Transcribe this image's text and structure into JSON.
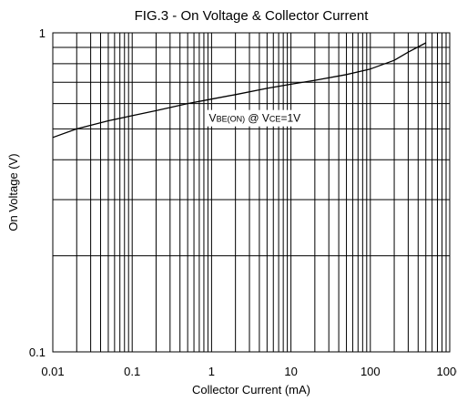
{
  "chart_data": {
    "type": "line",
    "title": "FIG.3 - On Voltage &  Collector Current",
    "xlabel": "Collector Current (mA)",
    "ylabel": "On Voltage (V)",
    "x_scale": "log",
    "y_scale": "log",
    "xlim": [
      0.01,
      1000
    ],
    "ylim": [
      0.1,
      1
    ],
    "x_ticks": [
      0.01,
      0.1,
      1,
      10,
      100,
      1000
    ],
    "x_tick_labels": [
      "0.01",
      "0.1",
      "1",
      "10",
      "100",
      "1000"
    ],
    "y_ticks": [
      0.1,
      1
    ],
    "y_tick_labels": [
      "0.1",
      "1"
    ],
    "grid": true,
    "annotation": {
      "text_parts": [
        {
          "text": "V",
          "sub": false
        },
        {
          "text": "BE(ON)",
          "sub": true
        },
        {
          "text": " @ V",
          "sub": false
        },
        {
          "text": "CE",
          "sub": true
        },
        {
          "text": "=1V",
          "sub": false
        }
      ],
      "x": 3.5,
      "y": 0.54
    },
    "series": [
      {
        "color": "#000000",
        "x": [
          0.01,
          0.02,
          0.05,
          0.1,
          0.2,
          0.5,
          1,
          2,
          5,
          10,
          20,
          50,
          100,
          200,
          300,
          500
        ],
        "y": [
          0.47,
          0.5,
          0.53,
          0.55,
          0.57,
          0.6,
          0.62,
          0.64,
          0.67,
          0.69,
          0.71,
          0.74,
          0.77,
          0.82,
          0.87,
          0.93
        ]
      }
    ]
  }
}
